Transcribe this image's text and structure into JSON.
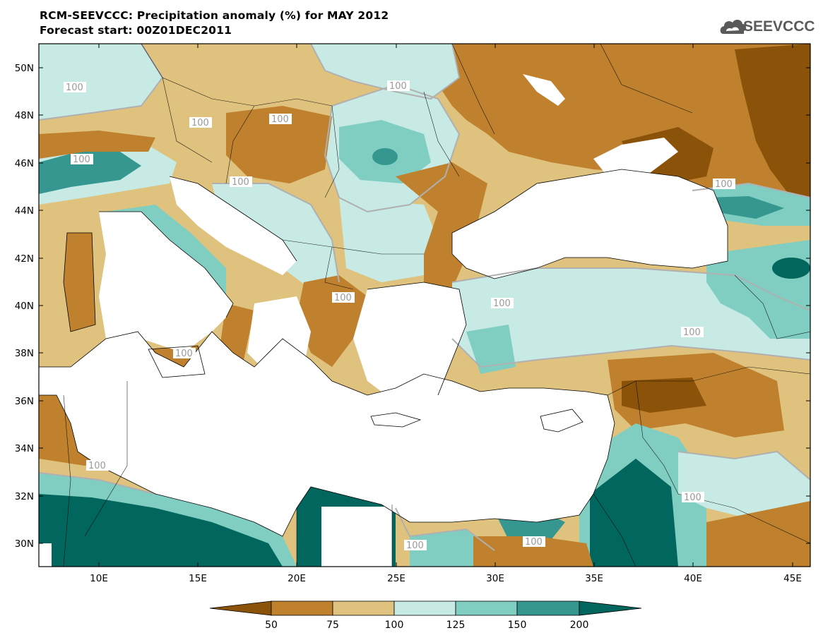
{
  "header": {
    "title": "RCM-SEEVCCC: Precipitation anomaly (%) for MAY 2012",
    "subtitle": "Forecast start: 00Z01DEC2011",
    "logo_text": "SEEVCCC"
  },
  "map": {
    "lon_ticks": [
      "10E",
      "15E",
      "20E",
      "25E",
      "30E",
      "35E",
      "40E",
      "45E"
    ],
    "lat_ticks": [
      "50N",
      "48N",
      "46N",
      "44N",
      "42N",
      "40N",
      "38N",
      "36N",
      "34N",
      "32N",
      "30N"
    ],
    "contour_label": "100",
    "colors": {
      "lt50": "#8b5209",
      "50_75": "#bf812d",
      "75_100": "#dfc27d",
      "100_125": "#c7eae5",
      "125_150": "#80cdc1",
      "150_200": "#35978f",
      "gt200": "#01665e",
      "sea": "#ffffff",
      "contour": "#b0b0b0"
    }
  },
  "colorbar": {
    "labels": [
      "50",
      "75",
      "100",
      "125",
      "150",
      "200"
    ]
  }
}
